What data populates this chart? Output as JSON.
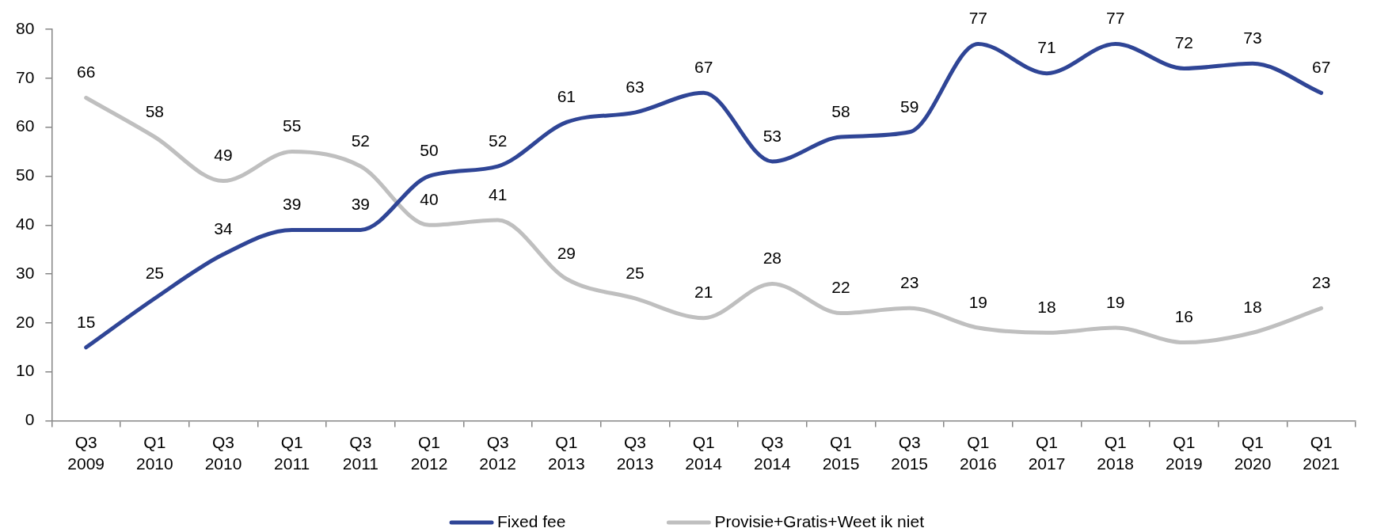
{
  "chart_data": {
    "type": "line",
    "categories": [
      "Q3 2009",
      "Q1 2010",
      "Q3 2010",
      "Q1 2011",
      "Q3 2011",
      "Q1 2012",
      "Q3 2012",
      "Q1 2013",
      "Q3 2013",
      "Q1 2014",
      "Q3 2014",
      "Q1 2015",
      "Q3 2015",
      "Q1 2016",
      "Q1 2017",
      "Q1 2018",
      "Q1 2019",
      "Q1 2020",
      "Q1 2021"
    ],
    "series": [
      {
        "name": "Fixed fee",
        "color": "#2f4596",
        "values": [
          15,
          25,
          34,
          39,
          39,
          50,
          52,
          61,
          63,
          67,
          53,
          58,
          59,
          77,
          71,
          77,
          72,
          73,
          67
        ]
      },
      {
        "name": "Provisie+Gratis+Weet ik niet",
        "color": "#bfbfbf",
        "values": [
          66,
          58,
          49,
          55,
          52,
          40,
          41,
          29,
          25,
          21,
          28,
          22,
          23,
          19,
          18,
          19,
          16,
          18,
          23
        ]
      }
    ],
    "ylim": [
      0,
      80
    ],
    "yticks": [
      0,
      10,
      20,
      30,
      40,
      50,
      60,
      70,
      80
    ],
    "data_labels": true,
    "legend": "bottom"
  }
}
